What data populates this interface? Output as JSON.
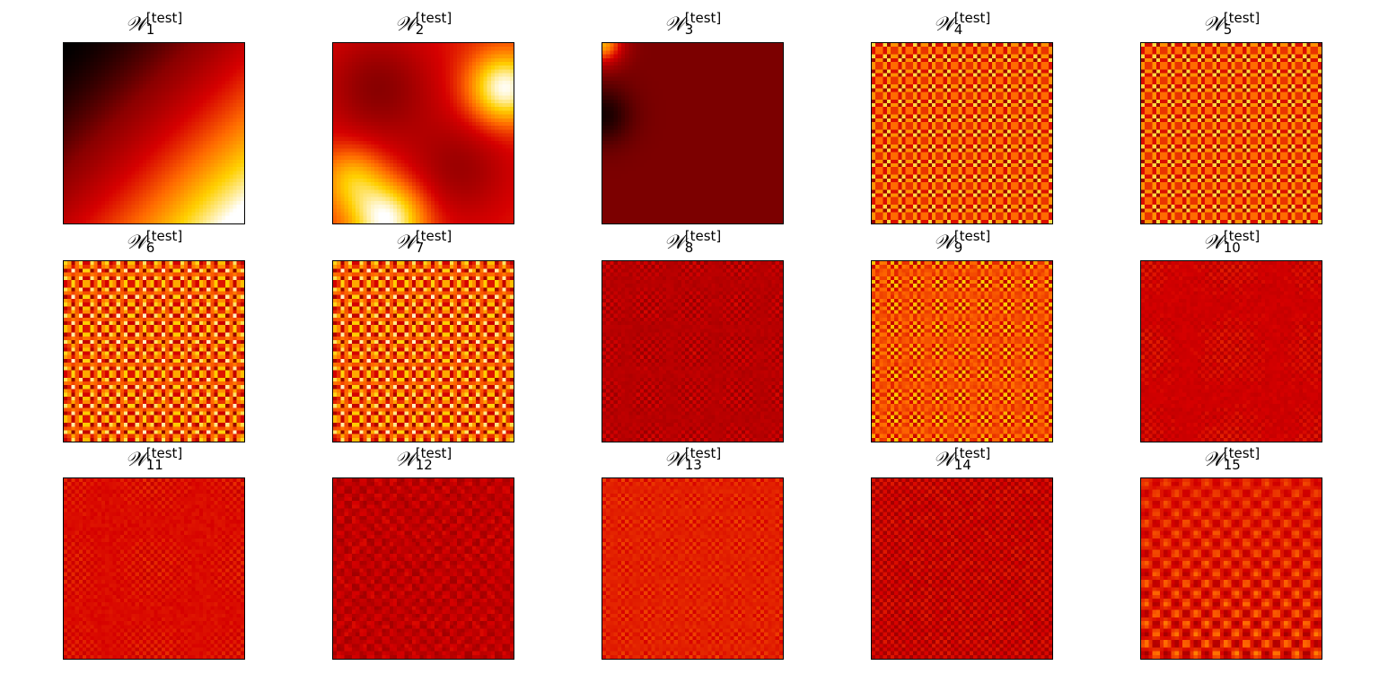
{
  "figure": {
    "colormap": "hot",
    "colormap_stops": [
      "#000000",
      "#8a0000",
      "#d60000",
      "#ff6a00",
      "#ffd000",
      "#ffffff"
    ],
    "panel_title_symbol": "𝒲",
    "panel_title_superscript": "[test]"
  },
  "chart_data": [
    {
      "type": "heatmap",
      "label_sub": "1",
      "pattern": "gradient-dark-to-bright-lower-right"
    },
    {
      "type": "heatmap",
      "label_sub": "2",
      "pattern": "smooth-blobs"
    },
    {
      "type": "heatmap",
      "label_sub": "3",
      "pattern": "mostly-dark-corner-bright"
    },
    {
      "type": "heatmap",
      "label_sub": "4",
      "pattern": "checkerboard-fine"
    },
    {
      "type": "heatmap",
      "label_sub": "5",
      "pattern": "checkerboard-fine"
    },
    {
      "type": "heatmap",
      "label_sub": "6",
      "pattern": "checkerboard-coarse"
    },
    {
      "type": "heatmap",
      "label_sub": "7",
      "pattern": "checkerboard-coarse"
    },
    {
      "type": "heatmap",
      "label_sub": "8",
      "pattern": "dark-fine-texture"
    },
    {
      "type": "heatmap",
      "label_sub": "9",
      "pattern": "checkerboard-fine-bright"
    },
    {
      "type": "heatmap",
      "label_sub": "10",
      "pattern": "red-fine-texture"
    },
    {
      "type": "heatmap",
      "label_sub": "11",
      "pattern": "red-fine-texture-light"
    },
    {
      "type": "heatmap",
      "label_sub": "12",
      "pattern": "dark-banded-texture"
    },
    {
      "type": "heatmap",
      "label_sub": "13",
      "pattern": "red-fine-grid"
    },
    {
      "type": "heatmap",
      "label_sub": "14",
      "pattern": "dark-red-fine-texture"
    },
    {
      "type": "heatmap",
      "label_sub": "15",
      "pattern": "blob-grid"
    }
  ]
}
